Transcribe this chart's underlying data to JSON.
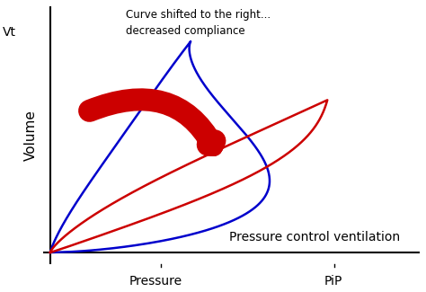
{
  "title_text": "Curve shifted to the right...\ndecreased compliance",
  "xlabel_bottom": "Pressure control ventilation",
  "xlabel_pressure": "Pressure",
  "xlabel_pip": "PiP",
  "ylabel": "Volume",
  "vt_label": "Vt",
  "blue_color": "#0000cc",
  "red_color": "#cc0000",
  "arrow_color": "#cc0000",
  "bg_color": "#ffffff",
  "xlim": [
    0,
    1.0
  ],
  "ylim": [
    -0.05,
    1.05
  ]
}
